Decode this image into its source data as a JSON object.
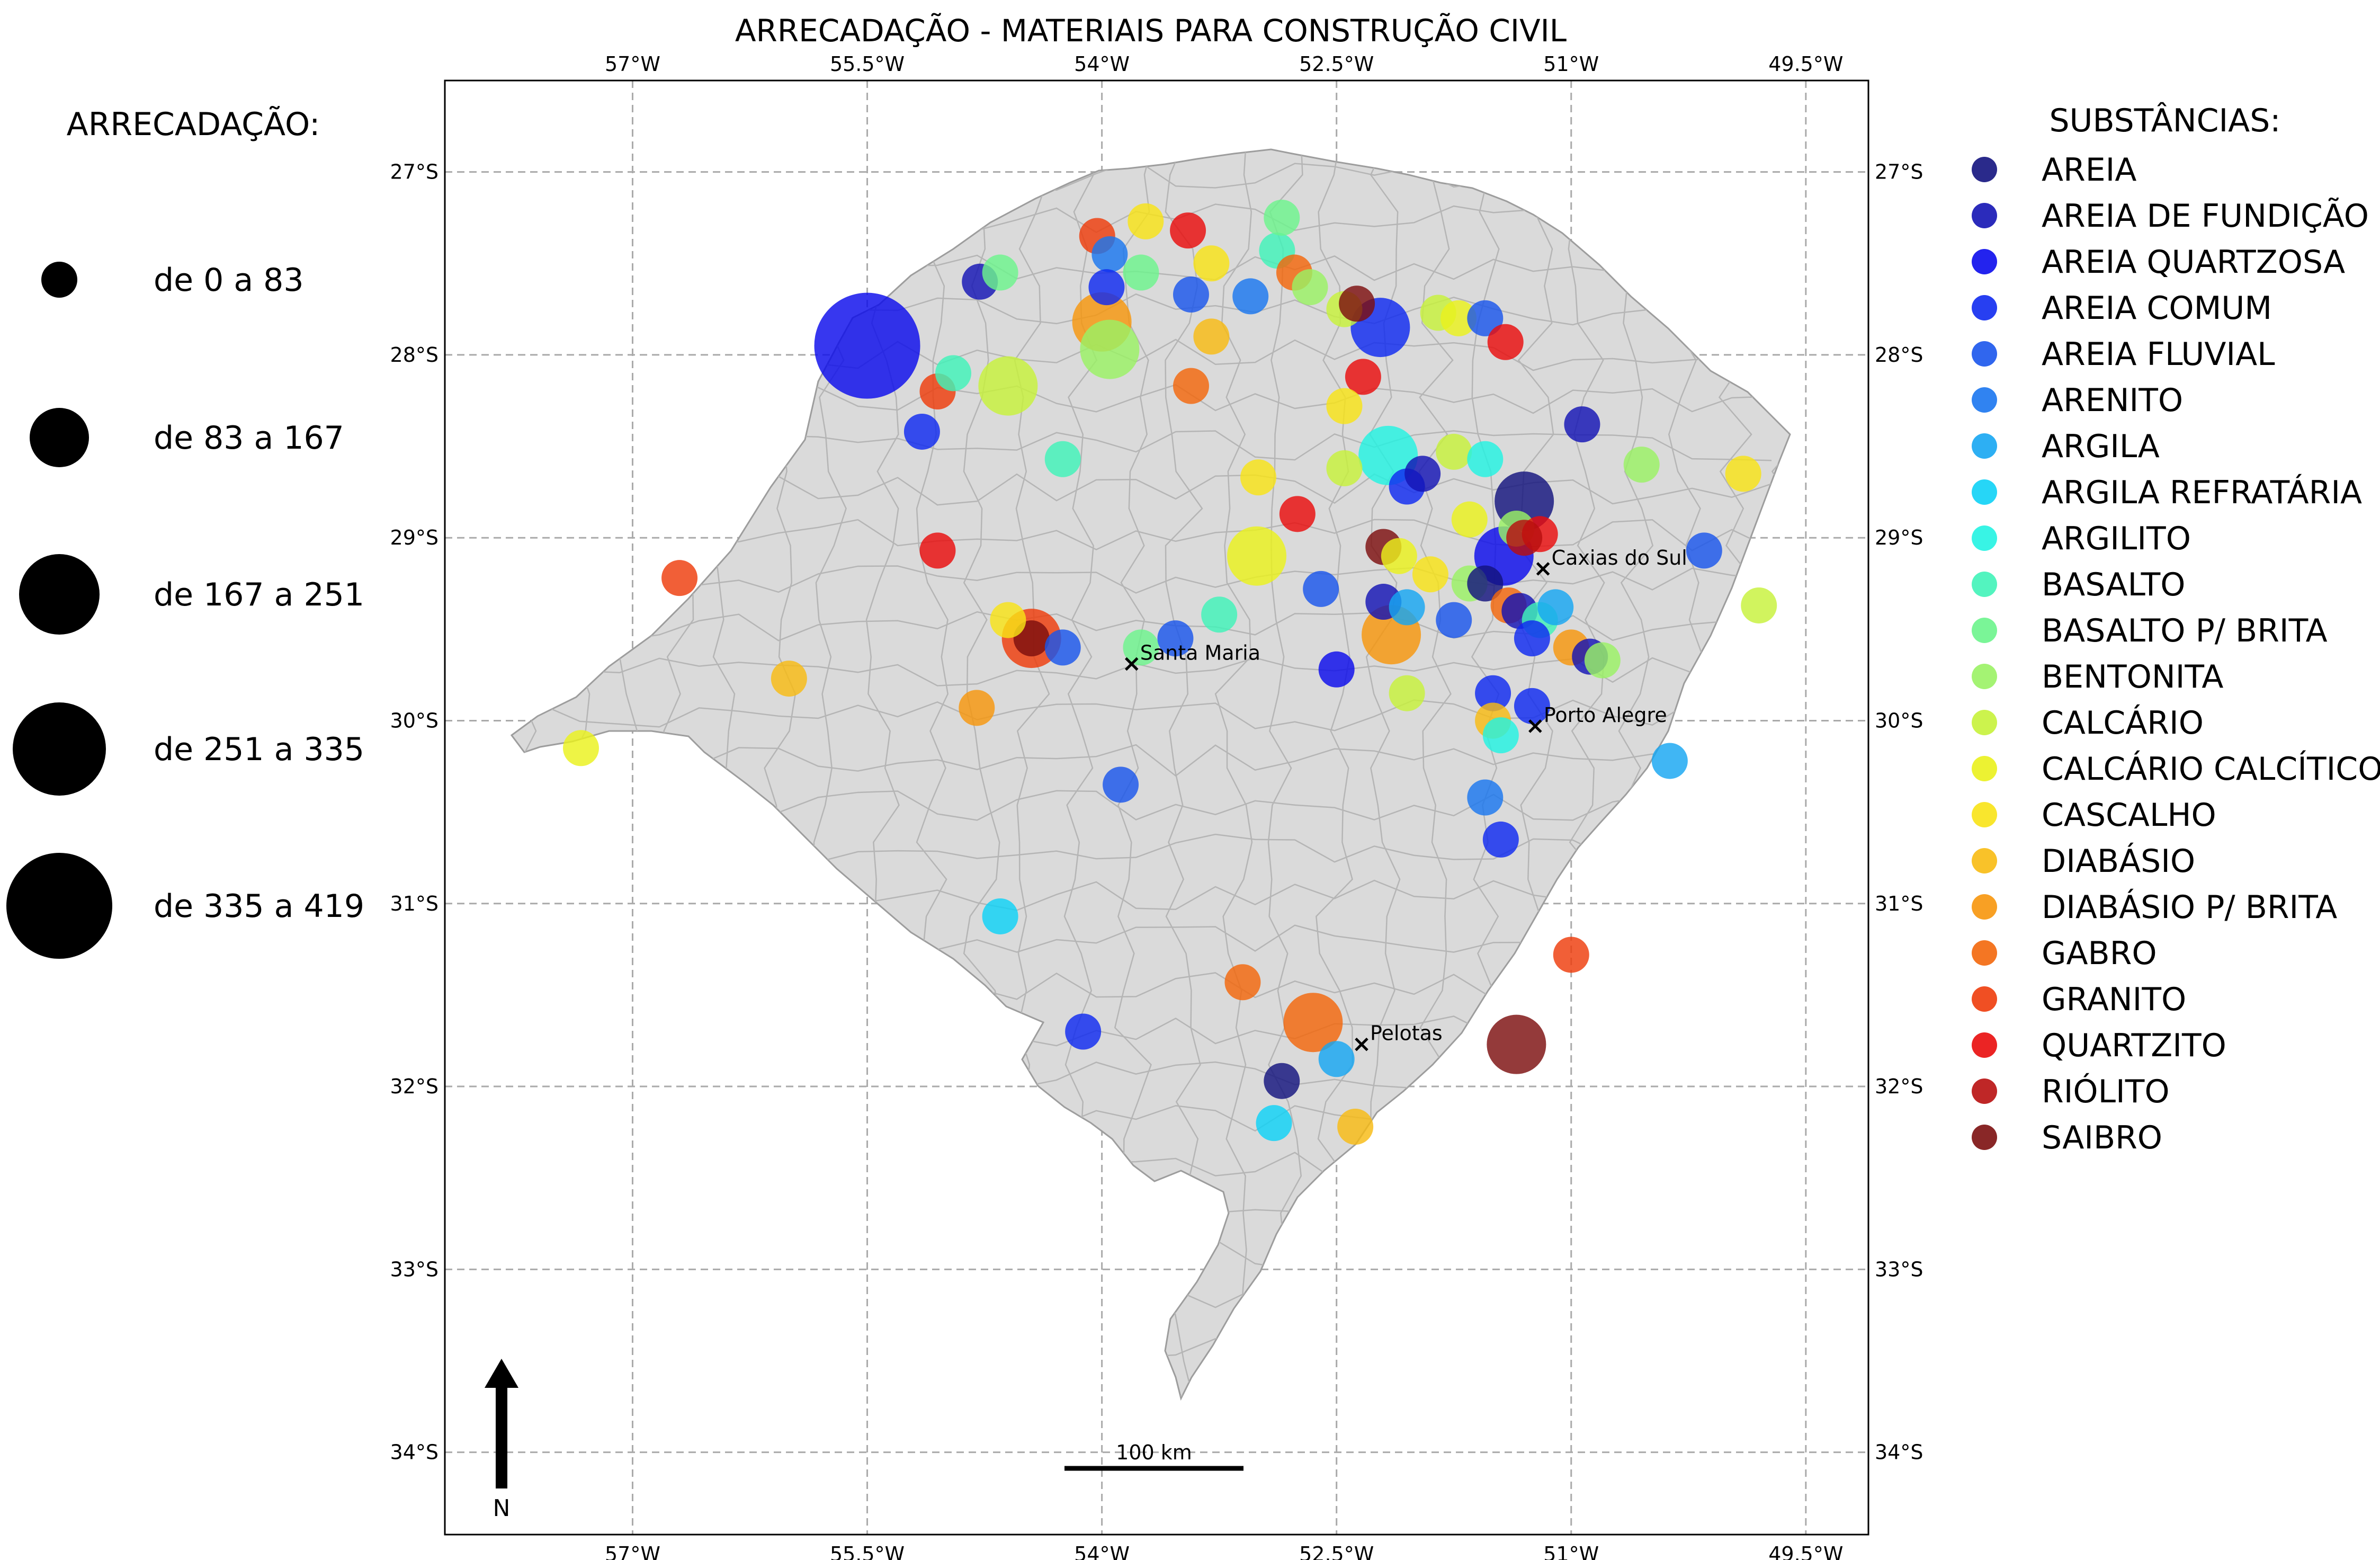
{
  "title": "ARRECADAÇÃO - MATERIAIS PARA CONSTRUÇÃO CIVIL",
  "size_legend": {
    "title": "ARRECADAÇÃO:",
    "classes": [
      {
        "label": "de 0 a 83",
        "value": 83
      },
      {
        "label": "de 83 a 167",
        "value": 167
      },
      {
        "label": "de 167 a 251",
        "value": 251
      },
      {
        "label": "de 251 a 335",
        "value": 335
      },
      {
        "label": "de 335 a 419",
        "value": 419
      }
    ]
  },
  "substance_legend": {
    "title": "SUBSTÂNCIAS:",
    "items": [
      {
        "key": "areia",
        "label": "AREIA",
        "color": "#13137e"
      },
      {
        "key": "fundicao",
        "label": "AREIA DE FUNDIÇÃO",
        "color": "#1414b4"
      },
      {
        "key": "quartzosa",
        "label": "AREIA QUARTZOSA",
        "color": "#0b0bec"
      },
      {
        "key": "comum",
        "label": "AREIA COMUM",
        "color": "#0f2af0"
      },
      {
        "key": "fluvial",
        "label": "AREIA FLUVIAL",
        "color": "#1a55ec"
      },
      {
        "key": "arenito",
        "label": "ARENITO",
        "color": "#1a76ef"
      },
      {
        "key": "argila",
        "label": "ARGILA",
        "color": "#16a6f2"
      },
      {
        "key": "refrataria",
        "label": "ARGILA REFRATÁRIA",
        "color": "#0ed2f6"
      },
      {
        "key": "argilito",
        "label": "ARGILITO",
        "color": "#22f3e2"
      },
      {
        "key": "basalto",
        "label": "BASALTO",
        "color": "#40f3b8"
      },
      {
        "key": "brita",
        "label": "BASALTO P/ BRITA",
        "color": "#6cf48c"
      },
      {
        "key": "bentonita",
        "label": "BENTONITA",
        "color": "#9af264"
      },
      {
        "key": "calcario",
        "label": "CALCÁRIO",
        "color": "#c7f23a"
      },
      {
        "key": "calcitico",
        "label": "CALCÁRIO CALCÍTICO",
        "color": "#eaf11c"
      },
      {
        "key": "cascalho",
        "label": "CASCALHO",
        "color": "#f8e316"
      },
      {
        "key": "diabasio",
        "label": "DIABÁSIO",
        "color": "#f8bb12"
      },
      {
        "key": "diab_brita",
        "label": "DIABÁSIO P/ BRITA",
        "color": "#f7960c"
      },
      {
        "key": "gabro",
        "label": "GABRO",
        "color": "#f3670b"
      },
      {
        "key": "granito",
        "label": "GRANITO",
        "color": "#ee3c0b"
      },
      {
        "key": "quartzito",
        "label": "QUARTZITO",
        "color": "#e90c0c"
      },
      {
        "key": "riolito",
        "label": "RIÓLITO",
        "color": "#b80f0f"
      },
      {
        "key": "saibro",
        "label": "SAIBRO",
        "color": "#7c0f0f"
      }
    ]
  },
  "axes": {
    "lon_ticks": [
      "57°W",
      "55.5°W",
      "54°W",
      "52.5°W",
      "51°W",
      "49.5°W"
    ],
    "lat_ticks": [
      "27°S",
      "28°S",
      "29°S",
      "30°S",
      "31°S",
      "32°S",
      "33°S",
      "34°S"
    ]
  },
  "cities": [
    {
      "name": "Caxias do Sul",
      "lon": -51.18,
      "lat": -29.17
    },
    {
      "name": "Porto Alegre",
      "lon": -51.23,
      "lat": -30.03
    },
    {
      "name": "Santa Maria",
      "lon": -53.81,
      "lat": -29.69
    },
    {
      "name": "Pelotas",
      "lon": -52.34,
      "lat": -31.77
    }
  ],
  "scale_bar": {
    "label": "100 km"
  },
  "north_arrow": {
    "label": "N"
  },
  "points": [
    {
      "lon": -55.5,
      "lat": -27.95,
      "v": 419,
      "s": "quartzosa"
    },
    {
      "lon": -51.3,
      "lat": -28.8,
      "v": 120,
      "s": "areia"
    },
    {
      "lon": -51.43,
      "lat": -29.1,
      "v": 130,
      "s": "quartzosa"
    },
    {
      "lon": -53.01,
      "lat": -29.1,
      "v": 140,
      "s": "calcitico"
    },
    {
      "lon": -52.15,
      "lat": -29.53,
      "v": 140,
      "s": "diab_brita"
    },
    {
      "lon": -52.65,
      "lat": -31.65,
      "v": 140,
      "s": "gabro"
    },
    {
      "lon": -51.35,
      "lat": -31.77,
      "v": 140,
      "s": "saibro"
    },
    {
      "lon": -54.45,
      "lat": -29.55,
      "v": 140,
      "s": "granito"
    },
    {
      "lon": -54.45,
      "lat": -29.55,
      "v": 40,
      "s": "saibro"
    },
    {
      "lon": -54.0,
      "lat": -27.82,
      "v": 120,
      "s": "diab_brita"
    },
    {
      "lon": -53.95,
      "lat": -27.97,
      "v": 110,
      "s": "bentonita"
    },
    {
      "lon": -54.6,
      "lat": -28.17,
      "v": 110,
      "s": "calcario"
    },
    {
      "lon": -52.22,
      "lat": -27.85,
      "v": 110,
      "s": "comum"
    },
    {
      "lon": -52.17,
      "lat": -28.55,
      "v": 110,
      "s": "argilito"
    },
    {
      "lon": -55.05,
      "lat": -28.2,
      "v": 40,
      "s": "granito"
    },
    {
      "lon": -54.95,
      "lat": -28.1,
      "v": 40,
      "s": "basalto"
    },
    {
      "lon": -54.78,
      "lat": -27.6,
      "v": 40,
      "s": "fundicao"
    },
    {
      "lon": -54.65,
      "lat": -27.55,
      "v": 40,
      "s": "brita"
    },
    {
      "lon": -54.03,
      "lat": -27.35,
      "v": 40,
      "s": "granito"
    },
    {
      "lon": -53.95,
      "lat": -27.45,
      "v": 40,
      "s": "arenito"
    },
    {
      "lon": -53.72,
      "lat": -27.27,
      "v": 40,
      "s": "cascalho"
    },
    {
      "lon": -53.45,
      "lat": -27.32,
      "v": 40,
      "s": "quartzito"
    },
    {
      "lon": -53.3,
      "lat": -27.5,
      "v": 40,
      "s": "cascalho"
    },
    {
      "lon": -53.75,
      "lat": -27.55,
      "v": 40,
      "s": "brita"
    },
    {
      "lon": -53.97,
      "lat": -27.63,
      "v": 40,
      "s": "comum"
    },
    {
      "lon": -53.43,
      "lat": -27.67,
      "v": 40,
      "s": "fluvial"
    },
    {
      "lon": -53.3,
      "lat": -27.9,
      "v": 40,
      "s": "diabasio"
    },
    {
      "lon": -53.43,
      "lat": -28.17,
      "v": 40,
      "s": "gabro"
    },
    {
      "lon": -53.05,
      "lat": -27.68,
      "v": 40,
      "s": "arenito"
    },
    {
      "lon": -52.88,
      "lat": -27.43,
      "v": 40,
      "s": "basalto"
    },
    {
      "lon": -52.85,
      "lat": -27.25,
      "v": 40,
      "s": "brita"
    },
    {
      "lon": -52.77,
      "lat": -27.55,
      "v": 40,
      "s": "gabro"
    },
    {
      "lon": -52.67,
      "lat": -27.63,
      "v": 40,
      "s": "bentonita"
    },
    {
      "lon": -52.45,
      "lat": -27.75,
      "v": 40,
      "s": "calcario"
    },
    {
      "lon": -52.37,
      "lat": -27.72,
      "v": 40,
      "s": "saibro"
    },
    {
      "lon": -52.33,
      "lat": -28.12,
      "v": 40,
      "s": "quartzito"
    },
    {
      "lon": -52.45,
      "lat": -28.28,
      "v": 40,
      "s": "cascalho"
    },
    {
      "lon": -51.85,
      "lat": -27.77,
      "v": 40,
      "s": "calcario"
    },
    {
      "lon": -51.72,
      "lat": -27.8,
      "v": 40,
      "s": "calcitico"
    },
    {
      "lon": -51.55,
      "lat": -27.8,
      "v": 40,
      "s": "fluvial"
    },
    {
      "lon": -51.42,
      "lat": -27.93,
      "v": 40,
      "s": "quartzito"
    },
    {
      "lon": -50.93,
      "lat": -28.38,
      "v": 40,
      "s": "fundicao"
    },
    {
      "lon": -50.55,
      "lat": -28.6,
      "v": 40,
      "s": "bentonita"
    },
    {
      "lon": -49.9,
      "lat": -28.65,
      "v": 40,
      "s": "cascalho"
    },
    {
      "lon": -50.15,
      "lat": -29.07,
      "v": 40,
      "s": "fluvial"
    },
    {
      "lon": -49.8,
      "lat": -29.37,
      "v": 40,
      "s": "calcario"
    },
    {
      "lon": -55.15,
      "lat": -28.42,
      "v": 40,
      "s": "comum"
    },
    {
      "lon": -54.25,
      "lat": -28.57,
      "v": 40,
      "s": "basalto"
    },
    {
      "lon": -53.0,
      "lat": -28.67,
      "v": 40,
      "s": "cascalho"
    },
    {
      "lon": -52.75,
      "lat": -28.87,
      "v": 40,
      "s": "quartzito"
    },
    {
      "lon": -52.45,
      "lat": -28.62,
      "v": 40,
      "s": "calcario"
    },
    {
      "lon": -51.75,
      "lat": -28.53,
      "v": 40,
      "s": "calcario"
    },
    {
      "lon": -51.55,
      "lat": -28.57,
      "v": 40,
      "s": "argilito"
    },
    {
      "lon": -52.05,
      "lat": -28.72,
      "v": 40,
      "s": "comum"
    },
    {
      "lon": -51.95,
      "lat": -28.65,
      "v": 40,
      "s": "fundicao"
    },
    {
      "lon": -51.65,
      "lat": -28.9,
      "v": 40,
      "s": "calcitico"
    },
    {
      "lon": -51.35,
      "lat": -28.95,
      "v": 40,
      "s": "bentonita"
    },
    {
      "lon": -51.2,
      "lat": -28.98,
      "v": 40,
      "s": "quartzito"
    },
    {
      "lon": -51.3,
      "lat": -29.0,
      "v": 40,
      "s": "riolito"
    },
    {
      "lon": -52.2,
      "lat": -29.05,
      "v": 40,
      "s": "saibro"
    },
    {
      "lon": -52.1,
      "lat": -29.1,
      "v": 40,
      "s": "calcitico"
    },
    {
      "lon": -51.9,
      "lat": -29.2,
      "v": 40,
      "s": "cascalho"
    },
    {
      "lon": -51.65,
      "lat": -29.25,
      "v": 40,
      "s": "bentonita"
    },
    {
      "lon": -51.55,
      "lat": -29.25,
      "v": 40,
      "s": "areia"
    },
    {
      "lon": -52.6,
      "lat": -29.28,
      "v": 40,
      "s": "fluvial"
    },
    {
      "lon": -52.2,
      "lat": -29.35,
      "v": 40,
      "s": "fundicao"
    },
    {
      "lon": -52.05,
      "lat": -29.38,
      "v": 40,
      "s": "argila"
    },
    {
      "lon": -51.75,
      "lat": -29.45,
      "v": 40,
      "s": "fluvial"
    },
    {
      "lon": -51.4,
      "lat": -29.37,
      "v": 40,
      "s": "gabro"
    },
    {
      "lon": -51.33,
      "lat": -29.4,
      "v": 40,
      "s": "fundicao"
    },
    {
      "lon": -51.2,
      "lat": -29.45,
      "v": 40,
      "s": "basalto"
    },
    {
      "lon": -51.1,
      "lat": -29.38,
      "v": 40,
      "s": "argila"
    },
    {
      "lon": -51.25,
      "lat": -29.55,
      "v": 40,
      "s": "comum"
    },
    {
      "lon": -51.0,
      "lat": -29.6,
      "v": 40,
      "s": "diab_brita"
    },
    {
      "lon": -50.88,
      "lat": -29.65,
      "v": 40,
      "s": "fundicao"
    },
    {
      "lon": -50.8,
      "lat": -29.67,
      "v": 40,
      "s": "bentonita"
    },
    {
      "lon": -52.5,
      "lat": -29.72,
      "v": 40,
      "s": "quartzosa"
    },
    {
      "lon": -52.05,
      "lat": -29.85,
      "v": 40,
      "s": "calcario"
    },
    {
      "lon": -51.5,
      "lat": -29.85,
      "v": 40,
      "s": "comum"
    },
    {
      "lon": -51.25,
      "lat": -29.92,
      "v": 40,
      "s": "comum"
    },
    {
      "lon": -51.5,
      "lat": -30.0,
      "v": 40,
      "s": "diabasio"
    },
    {
      "lon": -51.45,
      "lat": -30.08,
      "v": 40,
      "s": "argilito"
    },
    {
      "lon": -50.37,
      "lat": -30.22,
      "v": 40,
      "s": "argila"
    },
    {
      "lon": -53.25,
      "lat": -29.42,
      "v": 40,
      "s": "basalto"
    },
    {
      "lon": -53.75,
      "lat": -29.6,
      "v": 40,
      "s": "brita"
    },
    {
      "lon": -53.53,
      "lat": -29.55,
      "v": 40,
      "s": "fluvial"
    },
    {
      "lon": -54.25,
      "lat": -29.6,
      "v": 40,
      "s": "fluvial"
    },
    {
      "lon": -54.6,
      "lat": -29.45,
      "v": 40,
      "s": "cascalho"
    },
    {
      "lon": -55.05,
      "lat": -29.07,
      "v": 40,
      "s": "quartzito"
    },
    {
      "lon": -54.8,
      "lat": -29.93,
      "v": 40,
      "s": "diab_brita"
    },
    {
      "lon": -56.7,
      "lat": -29.22,
      "v": 40,
      "s": "granito"
    },
    {
      "lon": -56.0,
      "lat": -29.77,
      "v": 40,
      "s": "diabasio"
    },
    {
      "lon": -57.33,
      "lat": -30.15,
      "v": 40,
      "s": "calcitico"
    },
    {
      "lon": -53.88,
      "lat": -30.35,
      "v": 40,
      "s": "fluvial"
    },
    {
      "lon": -51.55,
      "lat": -30.42,
      "v": 40,
      "s": "arenito"
    },
    {
      "lon": -51.45,
      "lat": -30.65,
      "v": 40,
      "s": "comum"
    },
    {
      "lon": -54.65,
      "lat": -31.07,
      "v": 40,
      "s": "refrataria"
    },
    {
      "lon": -51.0,
      "lat": -31.28,
      "v": 40,
      "s": "granito"
    },
    {
      "lon": -53.1,
      "lat": -31.43,
      "v": 40,
      "s": "gabro"
    },
    {
      "lon": -54.12,
      "lat": -31.7,
      "v": 40,
      "s": "comum"
    },
    {
      "lon": -52.5,
      "lat": -31.85,
      "v": 40,
      "s": "argila"
    },
    {
      "lon": -52.85,
      "lat": -31.97,
      "v": 40,
      "s": "areia"
    },
    {
      "lon": -52.9,
      "lat": -32.2,
      "v": 40,
      "s": "refrataria"
    },
    {
      "lon": -52.38,
      "lat": -32.22,
      "v": 40,
      "s": "diabasio"
    }
  ]
}
